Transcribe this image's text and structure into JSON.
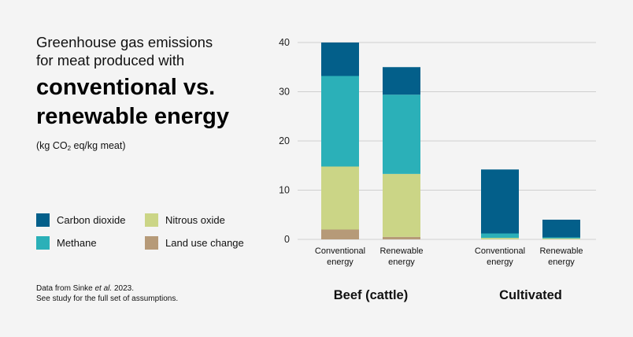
{
  "header": {
    "subtitle_line1": "Greenhouse gas emissions",
    "subtitle_line2": "for meat produced with",
    "title_line1": "conventional vs.",
    "title_line2": "renewable energy",
    "units_prefix": "(kg CO",
    "units_sub": "2",
    "units_suffix": " eq/kg meat)"
  },
  "legend": [
    {
      "label": "Carbon dioxide",
      "color": "#035f8a"
    },
    {
      "label": "Nitrous oxide",
      "color": "#cbd586"
    },
    {
      "label": "Methane",
      "color": "#2bb0b8"
    },
    {
      "label": "Land use change",
      "color": "#b69a78"
    }
  ],
  "source": {
    "line1_prefix": "Data from Sinke ",
    "line1_italic": "et al.",
    "line1_suffix": " 2023.",
    "line2": "See study for the full set of assumptions."
  },
  "chart_data": {
    "type": "bar",
    "stacked": true,
    "ylim": [
      0,
      40
    ],
    "yticks": [
      0,
      10,
      20,
      30,
      40
    ],
    "grid": true,
    "categories": [
      {
        "line1": "Conventional",
        "line2": "energy"
      },
      {
        "line1": "Renewable",
        "line2": "energy"
      },
      {
        "line1": "Conventional",
        "line2": "energy"
      },
      {
        "line1": "Renewable",
        "line2": "energy"
      }
    ],
    "groups": [
      {
        "label": "Beef (cattle)",
        "categories": [
          0,
          1
        ]
      },
      {
        "label": "Cultivated",
        "categories": [
          2,
          3
        ]
      }
    ],
    "series": [
      {
        "name": "Land use change",
        "color": "#b69a78",
        "values": [
          2.0,
          0.5,
          0.0,
          0.0
        ]
      },
      {
        "name": "Nitrous oxide",
        "color": "#cbd586",
        "values": [
          12.8,
          12.8,
          0.3,
          0.2
        ]
      },
      {
        "name": "Methane",
        "color": "#2bb0b8",
        "values": [
          18.4,
          16.1,
          0.9,
          0.2
        ]
      },
      {
        "name": "Carbon dioxide",
        "color": "#035f8a",
        "values": [
          6.8,
          5.6,
          13.0,
          3.6
        ]
      }
    ]
  }
}
